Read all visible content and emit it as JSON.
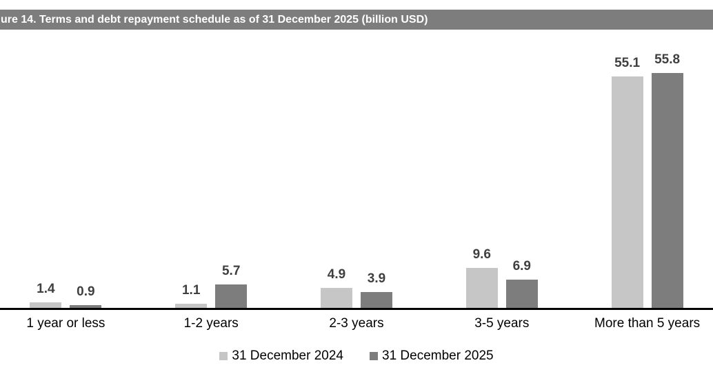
{
  "figure": {
    "title": "ure 14. Terms and debt repayment schedule as of 31 December 2025 (billion USD)"
  },
  "chart_data": {
    "type": "bar",
    "title": "ure 14. Terms and debt repayment schedule as of 31 December 2025 (billion USD)",
    "categories": [
      "1 year or less",
      "1-2 years",
      "2-3 years",
      "3-5 years",
      "More than 5 years"
    ],
    "series": [
      {
        "name": "31 December 2024",
        "color": "#c6c6c6",
        "values": [
          1.4,
          1.1,
          4.9,
          9.6,
          55.1
        ]
      },
      {
        "name": "31 December 2025",
        "color": "#7d7d7d",
        "values": [
          0.9,
          5.7,
          3.9,
          6.9,
          55.8
        ]
      }
    ],
    "ylim": [
      0,
      65
    ],
    "grid": false,
    "y_axis_visible": false,
    "legend_position": "bottom",
    "value_labels": "outside-end, one decimal",
    "colors": {
      "title_bar_bg": "#7d7d7d",
      "title_text": "#ffffff",
      "value_label": "#3f3f3f",
      "axis_label": "#000000",
      "axis_line": "#000000",
      "background": "#ffffff"
    }
  }
}
